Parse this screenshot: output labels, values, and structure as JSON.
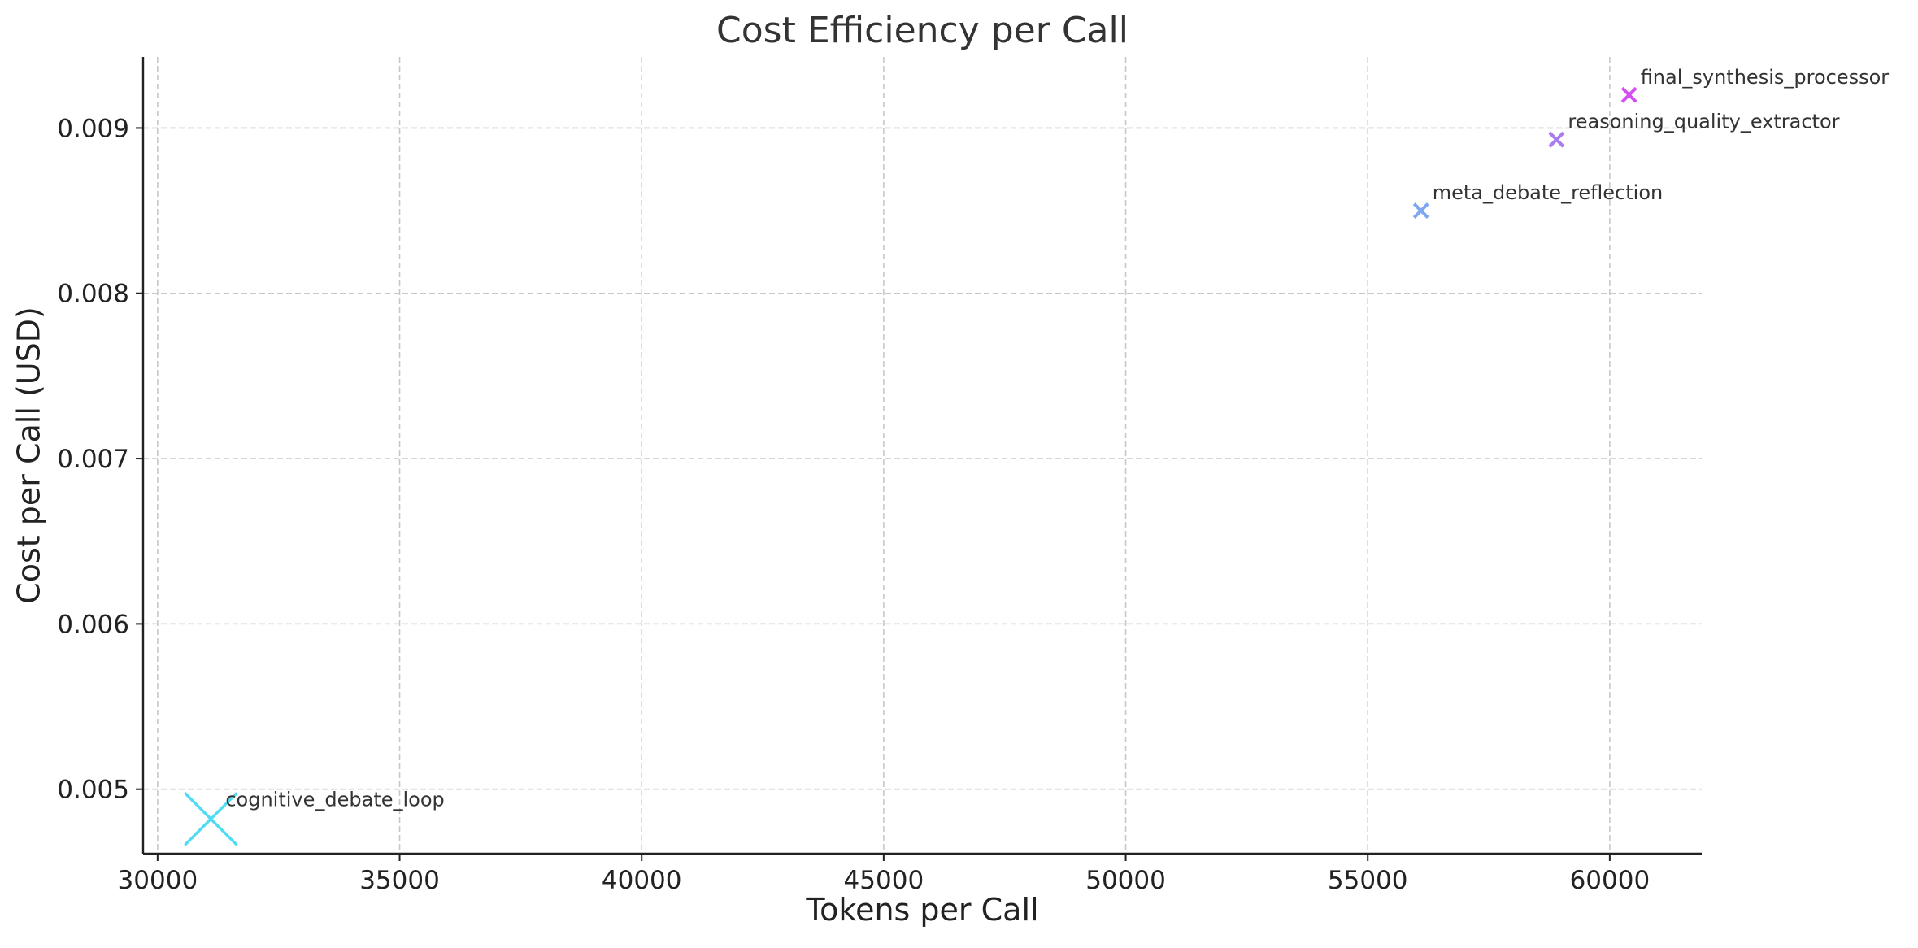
{
  "chart_data": {
    "type": "scatter",
    "title": "Cost Efficiency per Call",
    "xlabel": "Tokens per Call",
    "ylabel": "Cost per Call (USD)",
    "xlim": [
      29700,
      61900
    ],
    "ylim": [
      0.00461,
      0.00943
    ],
    "xticks": [
      30000,
      35000,
      40000,
      45000,
      50000,
      55000,
      60000
    ],
    "yticks": [
      0.005,
      0.006,
      0.007,
      0.008,
      0.009
    ],
    "xtick_labels": [
      "30000",
      "35000",
      "40000",
      "45000",
      "50000",
      "55000",
      "60000"
    ],
    "ytick_labels": [
      "0.005",
      "0.006",
      "0.007",
      "0.008",
      "0.009"
    ],
    "grid": true,
    "legend": "none",
    "marker": "x",
    "points": [
      {
        "label": "cognitive_debate_loop",
        "x": 31100,
        "y": 0.00482,
        "color": "#4fdcf3",
        "size": "large"
      },
      {
        "label": "meta_debate_reflection",
        "x": 56100,
        "y": 0.0085,
        "color": "#7ea7f2",
        "size": "small"
      },
      {
        "label": "reasoning_quality_extractor",
        "x": 58900,
        "y": 0.00893,
        "color": "#a97cf0",
        "size": "small"
      },
      {
        "label": "final_synthesis_processor",
        "x": 60400,
        "y": 0.0092,
        "color": "#d44ef0",
        "size": "small"
      }
    ]
  }
}
